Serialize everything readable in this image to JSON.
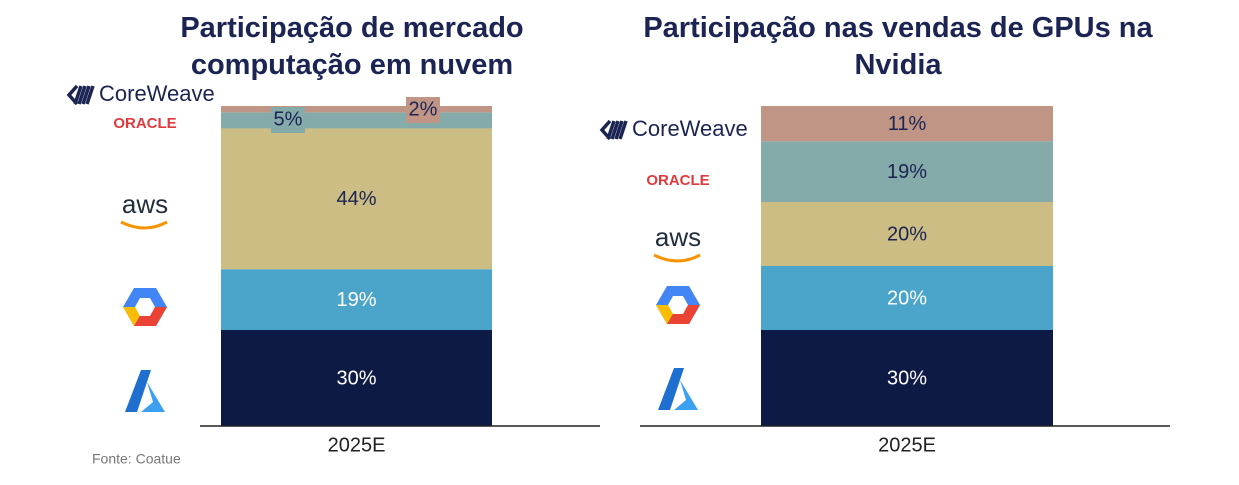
{
  "chart_data": [
    {
      "type": "bar",
      "stacked": true,
      "title": "Participação de mercado computação em nuvem",
      "categories": [
        "2025E"
      ],
      "ylim": [
        0,
        100
      ],
      "series": [
        {
          "color": "#0c1a45",
          "values": [
            30
          ],
          "value_labels": [
            "30%"
          ]
        },
        {
          "color": "#4ba4c9",
          "values": [
            19
          ],
          "value_labels": [
            "19%"
          ]
        },
        {
          "name": "aws",
          "color": "#cbbd84",
          "values": [
            44
          ],
          "value_labels": [
            "44%"
          ]
        },
        {
          "name": "ORACLE",
          "color": "#84aaa9",
          "values": [
            5
          ],
          "value_labels": [
            "5%"
          ]
        },
        {
          "name": "CoreWeave",
          "color": "#c09585",
          "values": [
            2
          ],
          "value_labels": [
            "2%"
          ]
        }
      ],
      "source": "Fonte: Coatue"
    },
    {
      "type": "bar",
      "stacked": true,
      "title": "Participação nas vendas de GPUs na Nvidia",
      "categories": [
        "2025E"
      ],
      "ylim": [
        0,
        100
      ],
      "series": [
        {
          "color": "#0c1a45",
          "values": [
            30
          ],
          "value_labels": [
            "30%"
          ]
        },
        {
          "color": "#4ba4c9",
          "values": [
            20
          ],
          "value_labels": [
            "20%"
          ]
        },
        {
          "name": "aws",
          "color": "#cbbd84",
          "values": [
            20
          ],
          "value_labels": [
            "20%"
          ]
        },
        {
          "name": "ORACLE",
          "color": "#84aaa9",
          "values": [
            19
          ],
          "value_labels": [
            "19%"
          ]
        },
        {
          "name": "CoreWeave",
          "color": "#c09585",
          "values": [
            11
          ],
          "value_labels": [
            "11%"
          ]
        }
      ]
    }
  ]
}
